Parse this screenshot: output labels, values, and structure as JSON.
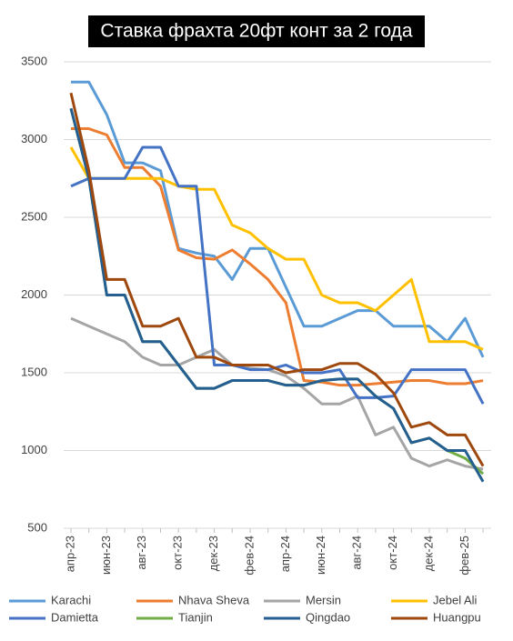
{
  "chart_data": {
    "type": "line",
    "title": "Ставка фрахта 20фт конт за 2 года",
    "categories": [
      "апр-23",
      null,
      "июн-23",
      null,
      "авг-23",
      null,
      "окт-23",
      null,
      "дек-23",
      null,
      "фев-24",
      null,
      "апр-24",
      null,
      "июн-24",
      null,
      "авг-24",
      null,
      "окт-24",
      null,
      "дек-24",
      null,
      "фев-25",
      null
    ],
    "ylim": [
      500,
      3500
    ],
    "yticks": [
      500,
      1000,
      1500,
      2000,
      2500,
      3000,
      3500
    ],
    "grid": true,
    "legend": "bottom",
    "series": [
      {
        "name": "Karachi",
        "color": "#5b9bd5",
        "values": [
          3370,
          3370,
          3160,
          2850,
          2850,
          2800,
          2300,
          2270,
          2250,
          2100,
          2300,
          2300,
          2050,
          1800,
          1800,
          1850,
          1900,
          1900,
          1800,
          1800,
          1800,
          1700,
          1850,
          1600
        ]
      },
      {
        "name": "Nhava Sheva",
        "color": "#ed7d31",
        "values": [
          3070,
          3070,
          3030,
          2820,
          2820,
          2700,
          2290,
          2240,
          2230,
          2290,
          2200,
          2100,
          1950,
          1450,
          1440,
          1420,
          1420,
          1430,
          1440,
          1450,
          1450,
          1430,
          1430,
          1450
        ]
      },
      {
        "name": "Mersin",
        "color": "#a5a5a5",
        "values": [
          1850,
          1800,
          1750,
          1700,
          1600,
          1550,
          1550,
          1600,
          1650,
          1550,
          1530,
          1520,
          1480,
          1400,
          1300,
          1300,
          1350,
          1100,
          1150,
          950,
          900,
          940,
          900,
          880
        ]
      },
      {
        "name": "Jebel Ali",
        "color": "#ffc000",
        "values": [
          2950,
          2750,
          2750,
          2750,
          2750,
          2750,
          2700,
          2680,
          2680,
          2450,
          2400,
          2300,
          2230,
          2230,
          2000,
          1950,
          1950,
          1900,
          2000,
          2100,
          1700,
          1700,
          1700,
          1650
        ]
      },
      {
        "name": "Damietta",
        "color": "#4472c4",
        "values": [
          2700,
          2750,
          2750,
          2750,
          2950,
          2950,
          2700,
          2700,
          1550,
          1550,
          1520,
          1520,
          1550,
          1500,
          1500,
          1520,
          1340,
          1340,
          1350,
          1520,
          1520,
          1520,
          1520,
          1300
        ]
      },
      {
        "name": "Tianjin",
        "color": "#70ad47",
        "values": [
          3200,
          2750,
          2000,
          2000,
          1700,
          1700,
          1550,
          1400,
          1400,
          1450,
          1450,
          1450,
          1420,
          1420,
          1450,
          1460,
          1460,
          1350,
          1270,
          1050,
          1080,
          1000,
          950,
          850
        ]
      },
      {
        "name": "Qingdao",
        "color": "#255e91",
        "values": [
          3200,
          2750,
          2000,
          2000,
          1700,
          1700,
          1550,
          1400,
          1400,
          1450,
          1450,
          1450,
          1420,
          1420,
          1450,
          1460,
          1460,
          1350,
          1270,
          1050,
          1080,
          1000,
          1000,
          800
        ]
      },
      {
        "name": "Huangpu",
        "color": "#9e480e",
        "values": [
          3300,
          2800,
          2100,
          2100,
          1800,
          1800,
          1850,
          1600,
          1600,
          1550,
          1550,
          1550,
          1500,
          1520,
          1520,
          1560,
          1560,
          1490,
          1370,
          1150,
          1180,
          1100,
          1100,
          900
        ]
      }
    ]
  }
}
